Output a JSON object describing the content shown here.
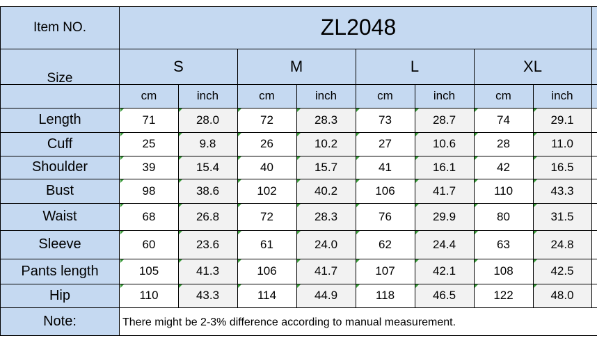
{
  "table": {
    "item_label": "Item NO.",
    "model": "ZL2048",
    "size_label": "Size",
    "sizes": [
      "S",
      "M",
      "L",
      "XL"
    ],
    "units": [
      "cm",
      "inch"
    ],
    "rows": [
      {
        "label": "Length",
        "values": [
          "71",
          "28.0",
          "72",
          "28.3",
          "73",
          "28.7",
          "74",
          "29.1"
        ]
      },
      {
        "label": "Cuff",
        "values": [
          "25",
          "9.8",
          "26",
          "10.2",
          "27",
          "10.6",
          "28",
          "11.0"
        ]
      },
      {
        "label": "Shoulder",
        "values": [
          "39",
          "15.4",
          "40",
          "15.7",
          "41",
          "16.1",
          "42",
          "16.5"
        ]
      },
      {
        "label": "Bust",
        "values": [
          "98",
          "38.6",
          "102",
          "40.2",
          "106",
          "41.7",
          "110",
          "43.3"
        ]
      },
      {
        "label": "Waist",
        "values": [
          "68",
          "26.8",
          "72",
          "28.3",
          "76",
          "29.9",
          "80",
          "31.5"
        ]
      },
      {
        "label": "Sleeve",
        "values": [
          "60",
          "23.6",
          "61",
          "24.0",
          "62",
          "24.4",
          "63",
          "24.8"
        ]
      },
      {
        "label": "Pants length",
        "values": [
          "105",
          "41.3",
          "106",
          "41.7",
          "107",
          "42.1",
          "108",
          "42.5"
        ]
      },
      {
        "label": "Hip",
        "values": [
          "110",
          "43.3",
          "114",
          "44.9",
          "118",
          "46.5",
          "122",
          "48.0"
        ]
      }
    ],
    "note_label": "Note:",
    "note_text": "There might be 2-3% difference according to manual measurement."
  },
  "colors": {
    "header_fill": "#c5d9f1",
    "inch_fill": "#f2f2f2",
    "cell_fill": "#ffffff",
    "grid": "#000000",
    "marker": "#3a9c3a"
  }
}
